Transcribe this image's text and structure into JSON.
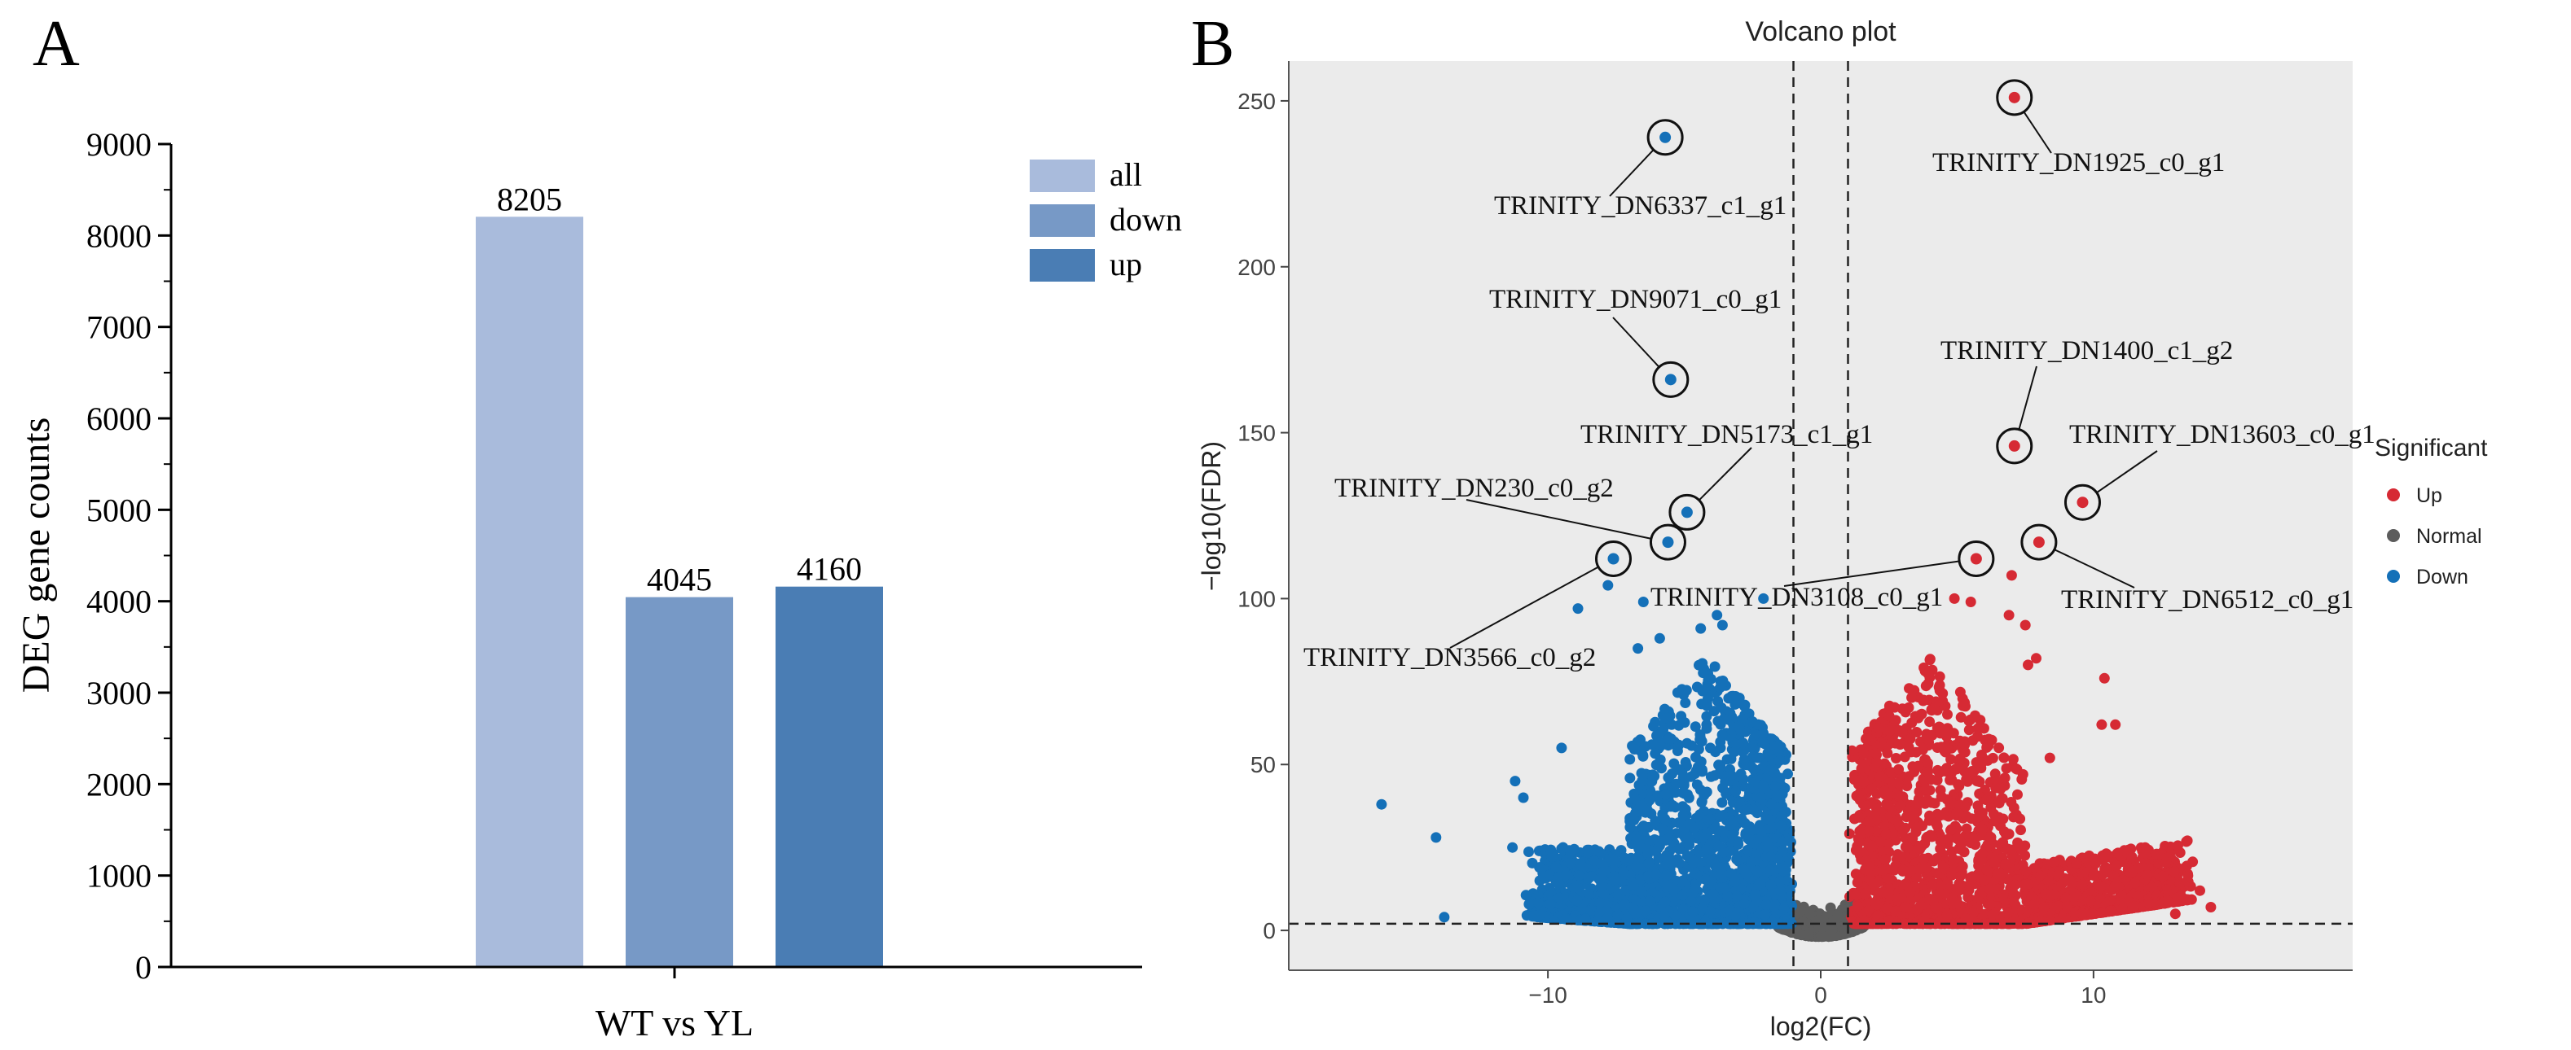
{
  "panels": {
    "A": {
      "letter": "A"
    },
    "B": {
      "letter": "B"
    }
  },
  "chart_data": [
    {
      "type": "bar",
      "panel": "A",
      "title": "",
      "xlabel": "",
      "ylabel": "DEG gene counts",
      "categories": [
        "WT vs YL"
      ],
      "series": [
        {
          "name": "all",
          "values": [
            8205
          ],
          "color": "#a9bbdc"
        },
        {
          "name": "down",
          "values": [
            4045
          ],
          "color": "#7799c6"
        },
        {
          "name": "up",
          "values": [
            4160
          ],
          "color": "#4a7db4"
        }
      ],
      "ylim": [
        0,
        9000
      ],
      "yticks": [
        0,
        1000,
        2000,
        3000,
        4000,
        5000,
        6000,
        7000,
        8000,
        9000
      ],
      "legend_position": "top-right",
      "grid": false
    },
    {
      "type": "scatter",
      "panel": "B",
      "title": "Volcano plot",
      "xlabel": "log2(FC)",
      "ylabel": "−log10(FDR)",
      "xlim": [
        -19.5,
        19.5
      ],
      "ylim": [
        -12,
        262
      ],
      "xticks": [
        -10,
        0,
        10
      ],
      "yticks": [
        0,
        50,
        100,
        150,
        200,
        250
      ],
      "thresholds": {
        "x": [
          -1,
          1
        ],
        "y": 2
      },
      "legend": {
        "title": "Significant",
        "position": "right",
        "entries": [
          {
            "name": "Up",
            "color": "#d62a34"
          },
          {
            "name": "Normal",
            "color": "#5c5c5c"
          },
          {
            "name": "Down",
            "color": "#1470b8"
          }
        ]
      },
      "background": "#ebebeb",
      "grid": false,
      "labeled_points": [
        {
          "label": "TRINITY_DN1925_c0_g1",
          "x": 7.1,
          "y": 251,
          "group": "Up"
        },
        {
          "label": "TRINITY_DN6337_c1_g1",
          "x": -5.7,
          "y": 239,
          "group": "Down"
        },
        {
          "label": "TRINITY_DN9071_c0_g1",
          "x": -5.5,
          "y": 166,
          "group": "Down"
        },
        {
          "label": "TRINITY_DN1400_c1_g2",
          "x": 7.1,
          "y": 146,
          "group": "Up"
        },
        {
          "label": "TRINITY_DN13603_c0_g1",
          "x": 9.6,
          "y": 129,
          "group": "Up"
        },
        {
          "label": "TRINITY_DN5173_c1_g1",
          "x": -4.9,
          "y": 126,
          "group": "Down"
        },
        {
          "label": "TRINITY_DN230_c0_g2",
          "x": -5.6,
          "y": 117,
          "group": "Down"
        },
        {
          "label": "TRINITY_DN6512_c0_g1",
          "x": 8.0,
          "y": 117,
          "group": "Up"
        },
        {
          "label": "TRINITY_DN3108_c0_g1",
          "x": 5.7,
          "y": 112,
          "group": "Up"
        },
        {
          "label": "TRINITY_DN3566_c0_g2",
          "x": -7.6,
          "y": 112,
          "group": "Down"
        }
      ],
      "extra_points": {
        "Up": [
          [
            7.0,
            107
          ],
          [
            4.9,
            100
          ],
          [
            5.5,
            99
          ],
          [
            6.9,
            95
          ],
          [
            7.5,
            92
          ],
          [
            7.9,
            82
          ],
          [
            10.4,
            76
          ],
          [
            7.6,
            80
          ],
          [
            10.8,
            62
          ],
          [
            10.3,
            62
          ],
          [
            8.4,
            52
          ],
          [
            12.3,
            23
          ],
          [
            13.9,
            12
          ],
          [
            14.3,
            7
          ],
          [
            13.0,
            5
          ]
        ],
        "Down": [
          [
            -7.8,
            104
          ],
          [
            -8.9,
            97
          ],
          [
            -6.5,
            99
          ],
          [
            -2.1,
            100
          ],
          [
            -3.8,
            95
          ],
          [
            -4.4,
            91
          ],
          [
            -5.9,
            88
          ],
          [
            -3.6,
            92
          ],
          [
            -6.7,
            85
          ],
          [
            -16.1,
            38
          ],
          [
            -14.1,
            28
          ],
          [
            -13.8,
            4
          ],
          [
            -11.3,
            25
          ],
          [
            -9.5,
            55
          ],
          [
            -11.2,
            45
          ],
          [
            -10.9,
            40
          ]
        ]
      }
    }
  ]
}
